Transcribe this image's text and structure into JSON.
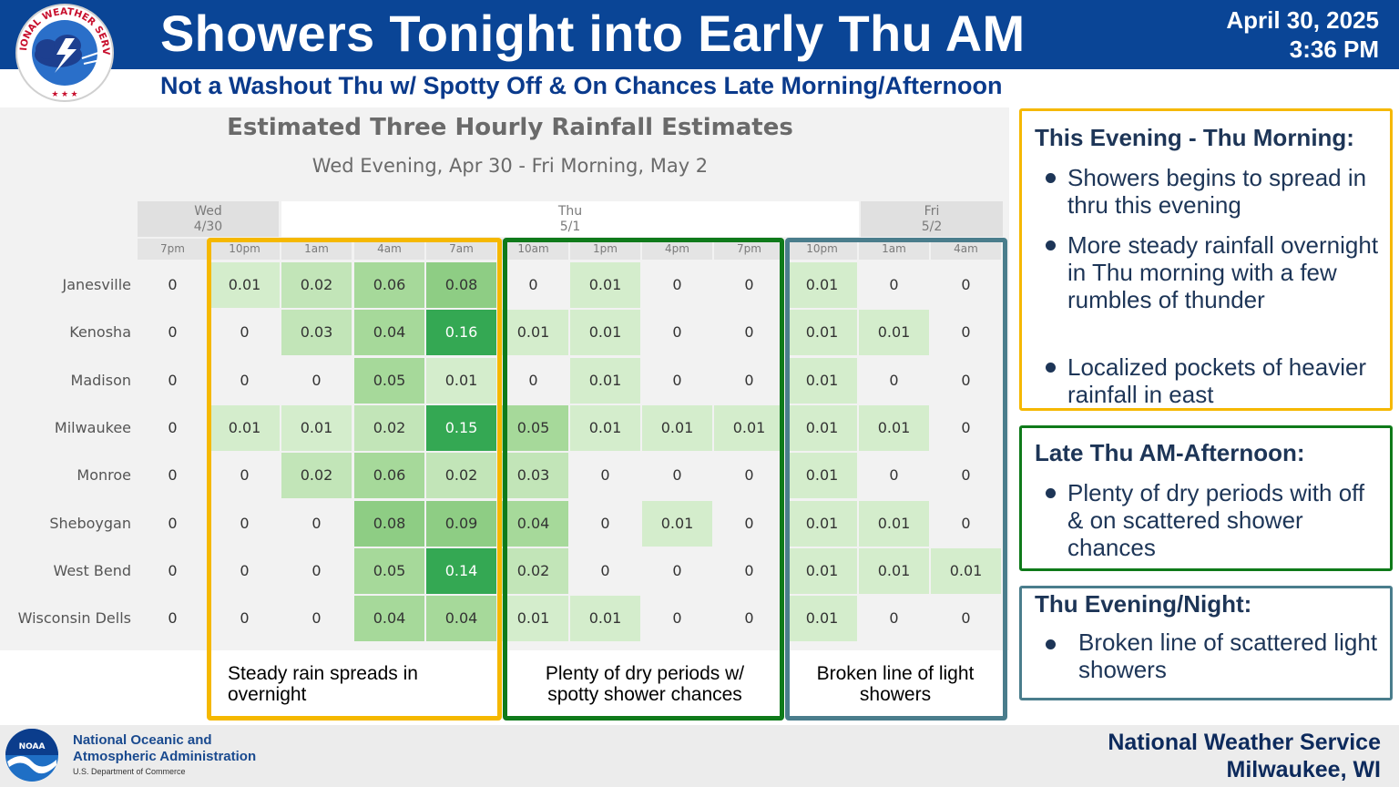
{
  "header": {
    "title": "Showers Tonight into Early Thu AM",
    "subtitle": "Not a Washout Thu w/ Spotty Off & On Chances Late Morning/Afternoon",
    "date": "April 30, 2025",
    "time": "3:36 PM",
    "logo_text": "NATIONAL WEATHER SERVICE"
  },
  "chart": {
    "title": "Estimated Three Hourly Rainfall Estimates",
    "subtitle": "Wed Evening, Apr 30 - Fri Morning, May 2",
    "days": [
      {
        "name": "Wed",
        "date": "4/30"
      },
      {
        "name": "Thu",
        "date": "5/1"
      },
      {
        "name": "Fri",
        "date": "5/2"
      }
    ],
    "hours": [
      "7pm",
      "10pm",
      "1am",
      "4am",
      "7am",
      "10am",
      "1pm",
      "4pm",
      "7pm",
      "10pm",
      "1am",
      "4am"
    ]
  },
  "chart_data": {
    "type": "heatmap",
    "title": "Estimated Three Hourly Rainfall Estimates",
    "subtitle": "Wed Evening, Apr 30 - Fri Morning, May 2",
    "columns": [
      "7pm",
      "10pm",
      "1am",
      "4am",
      "7am",
      "10am",
      "1pm",
      "4pm",
      "7pm",
      "10pm",
      "1am",
      "4am"
    ],
    "rows": [
      {
        "name": "Janesville",
        "values": [
          "0",
          "0.01",
          "0.02",
          "0.06",
          "0.08",
          "0",
          "0.01",
          "0",
          "0",
          "0.01",
          "0",
          "0"
        ]
      },
      {
        "name": "Kenosha",
        "values": [
          "0",
          "0",
          "0.03",
          "0.04",
          "0.16",
          "0.01",
          "0.01",
          "0",
          "0",
          "0.01",
          "0.01",
          "0"
        ]
      },
      {
        "name": "Madison",
        "values": [
          "0",
          "0",
          "0",
          "0.05",
          "0.01",
          "0",
          "0.01",
          "0",
          "0",
          "0.01",
          "0",
          "0"
        ]
      },
      {
        "name": "Milwaukee",
        "values": [
          "0",
          "0.01",
          "0.01",
          "0.02",
          "0.15",
          "0.05",
          "0.01",
          "0.01",
          "0.01",
          "0.01",
          "0.01",
          "0"
        ]
      },
      {
        "name": "Monroe",
        "values": [
          "0",
          "0",
          "0.02",
          "0.06",
          "0.02",
          "0.03",
          "0",
          "0",
          "0",
          "0.01",
          "0",
          "0"
        ]
      },
      {
        "name": "Sheboygan",
        "values": [
          "0",
          "0",
          "0",
          "0.08",
          "0.09",
          "0.04",
          "0",
          "0.01",
          "0",
          "0.01",
          "0.01",
          "0"
        ]
      },
      {
        "name": "West Bend",
        "values": [
          "0",
          "0",
          "0",
          "0.05",
          "0.14",
          "0.02",
          "0",
          "0",
          "0",
          "0.01",
          "0.01",
          "0.01"
        ]
      },
      {
        "name": "Wisconsin Dells",
        "values": [
          "0",
          "0",
          "0",
          "0.04",
          "0.04",
          "0.01",
          "0.01",
          "0",
          "0",
          "0.01",
          "0",
          "0"
        ]
      }
    ]
  },
  "groups": [
    {
      "label": "Steady rain spreads in overnight",
      "color": "#f5b800"
    },
    {
      "label": "Plenty of dry periods w/ spotty shower chances",
      "color": "#0f7a1a"
    },
    {
      "label": "Broken line of light showers",
      "color": "#4a7d8c"
    }
  ],
  "side_panels": [
    {
      "heading": "This Evening - Thu Morning:",
      "color": "#f5b800",
      "items": [
        "Showers begins to spread in thru this evening",
        "More steady rainfall overnight in Thu morning with a few rumbles of thunder",
        "Localized pockets of heavier rainfall in east"
      ]
    },
    {
      "heading": "Late Thu AM-Afternoon:",
      "color": "#0f7a1a",
      "items": [
        "Plenty of dry periods with off & on scattered shower chances"
      ]
    },
    {
      "heading": "Thu Evening/Night:",
      "color": "#4a7d8c",
      "items": [
        "Broken line of scattered light showers"
      ]
    }
  ],
  "footer": {
    "noaa_line1": "National Oceanic and",
    "noaa_line2": "Atmospheric Administration",
    "noaa_dept": "U.S. Department of Commerce",
    "noaa_logo_text": "NOAA",
    "office_line1": "National Weather Service",
    "office_line2": "Milwaukee, WI"
  },
  "colors": {
    "header_band": "#0a4596",
    "subtitle_text": "#0a3a8c",
    "scale": [
      "#f2f2f2",
      "#d4edcc",
      "#c2e5b8",
      "#a6d99a",
      "#8ecd84",
      "#34a853"
    ]
  }
}
